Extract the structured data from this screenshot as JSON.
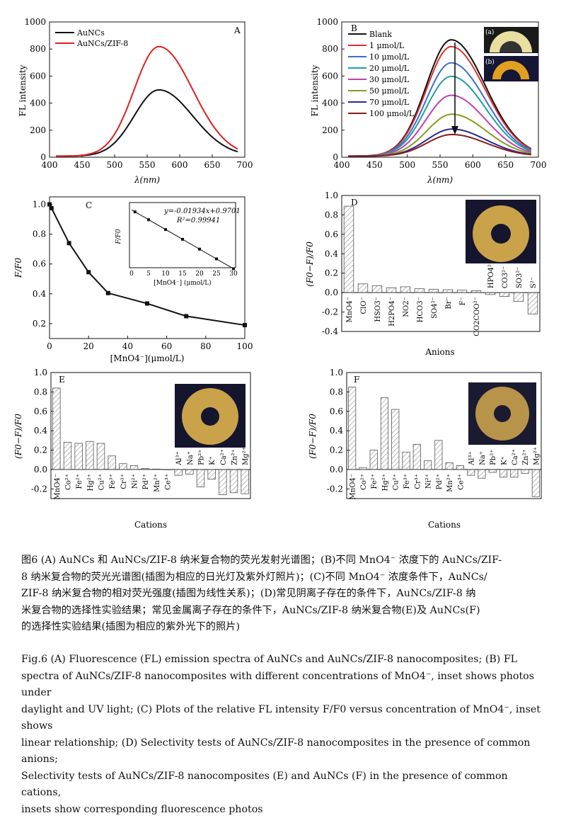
{
  "panels": {
    "A": {
      "letter": "A",
      "legend": [
        "AuNCs",
        "AuNCs/ZIF-8"
      ],
      "ylabel": "FL intensity",
      "xlabel": "λ(nm)",
      "xticks": [
        "400",
        "450",
        "500",
        "550",
        "600",
        "650",
        "700"
      ],
      "yticks": [
        "0",
        "200",
        "400",
        "600",
        "800",
        "1000"
      ]
    },
    "B": {
      "letter": "B",
      "legend": [
        "Blank",
        "1 μmol/L",
        "10 μmol/L",
        "20 μmol/L",
        "30 μmol/L",
        "50 μmol/L",
        "70 μmol/L",
        "100 μmol/L"
      ],
      "ylabel": "FL intensity",
      "xlabel": "λ(nm)",
      "xticks": [
        "400",
        "450",
        "500",
        "550",
        "600",
        "650",
        "700"
      ],
      "yticks": [
        "0",
        "200",
        "400",
        "600",
        "800",
        "1000"
      ],
      "inset_labels": [
        "(a)",
        "(b)"
      ]
    },
    "C": {
      "letter": "C",
      "ylabel": "F/F0",
      "xlabel": "[MnO4⁻](μmol/L)",
      "xticks": [
        "0",
        "20",
        "40",
        "60",
        "80",
        "100"
      ],
      "yticks": [
        "0.2",
        "0.4",
        "0.6",
        "0.8",
        "1.0"
      ],
      "inset": {
        "equation": "y=-0.01934x+0.9701",
        "r2": "R²=0.99941",
        "xlabel": "[MnO4⁻] (μmol/L)",
        "ylabel": "F/F0",
        "xticks": [
          "0",
          "5",
          "10",
          "15",
          "20",
          "25",
          "30"
        ]
      }
    },
    "D": {
      "letter": "D",
      "ylabel": "(F0−F)/F0",
      "xlabel": "Anions",
      "yticks": [
        "1.0",
        "0.8",
        "0.6",
        "0.4",
        "0.2",
        "0.0",
        "-0.2",
        "-0.4"
      ]
    },
    "E": {
      "letter": "E",
      "ylabel": "(F0−F)/F0",
      "xlabel": "Cations",
      "yticks": [
        "1.0",
        "0.8",
        "0.6",
        "0.4",
        "0.2",
        "0.0",
        "-0.2"
      ]
    },
    "F": {
      "letter": "F",
      "ylabel": "(F0−F)/F0",
      "xlabel": "Cations",
      "yticks": [
        "1.0",
        "0.8",
        "0.6",
        "0.4",
        "0.2",
        "0.0",
        "-0.2"
      ]
    }
  },
  "chart_data": [
    {
      "panel": "A",
      "type": "line",
      "xlim": [
        400,
        700
      ],
      "ylim": [
        0,
        1000
      ],
      "xlabel": "λ(nm)",
      "ylabel": "FL intensity",
      "series": [
        {
          "name": "AuNCs",
          "color": "#111111",
          "peak_x": 568,
          "peak_y": 490
        },
        {
          "name": "AuNCs/ZIF-8",
          "color": "#e02020",
          "peak_x": 568,
          "peak_y": 810
        }
      ]
    },
    {
      "panel": "B",
      "type": "line",
      "xlim": [
        400,
        700
      ],
      "ylim": [
        0,
        1000
      ],
      "xlabel": "λ(nm)",
      "ylabel": "FL intensity",
      "series": [
        {
          "name": "Blank",
          "color": "#111111",
          "peak_x": 567,
          "peak_y": 860
        },
        {
          "name": "1 μmol/L",
          "color": "#e03030",
          "peak_x": 567,
          "peak_y": 810
        },
        {
          "name": "10 μmol/L",
          "color": "#3a6fd0",
          "peak_x": 567,
          "peak_y": 690
        },
        {
          "name": "20 μmol/L",
          "color": "#20a0a0",
          "peak_x": 567,
          "peak_y": 590
        },
        {
          "name": "30 μmol/L",
          "color": "#c040b0",
          "peak_x": 567,
          "peak_y": 450
        },
        {
          "name": "50 μmol/L",
          "color": "#8a9a20",
          "peak_x": 568,
          "peak_y": 310
        },
        {
          "name": "70 μmol/L",
          "color": "#2a2a90",
          "peak_x": 568,
          "peak_y": 200
        },
        {
          "name": "100 μmol/L",
          "color": "#8a1a1a",
          "peak_x": 568,
          "peak_y": 160
        }
      ]
    },
    {
      "panel": "C",
      "type": "line",
      "xlim": [
        0,
        100
      ],
      "ylim": [
        0.1,
        1.05
      ],
      "xlabel": "[MnO4⁻](μmol/L)",
      "ylabel": "F/F0",
      "x": [
        0,
        1,
        10,
        20,
        30,
        50,
        70,
        100
      ],
      "y": [
        1.0,
        0.975,
        0.74,
        0.545,
        0.405,
        0.335,
        0.25,
        0.19
      ],
      "inset": {
        "type": "scatter",
        "xlim": [
          0,
          30
        ],
        "ylim": [
          0.4,
          1.0
        ],
        "x": [
          1,
          5,
          10,
          15,
          20,
          25,
          30
        ],
        "y": [
          0.95,
          0.873,
          0.776,
          0.68,
          0.583,
          0.487,
          0.39
        ]
      }
    },
    {
      "panel": "D",
      "type": "bar",
      "ylim": [
        -0.4,
        1.0
      ],
      "xlabel": "Anions",
      "ylabel": "(F0−F)/F0",
      "categories": [
        "MnO4⁻",
        "ClO⁻",
        "HSO3⁻",
        "H2PO4⁻",
        "NO2⁻",
        "HCO3⁻",
        "SO4²⁻",
        "Br⁻",
        "F⁻",
        "CO2COO²⁻",
        "HPO4²⁻",
        "CO3²⁻",
        "SO3²⁻",
        "S²⁻"
      ],
      "values": [
        0.89,
        0.09,
        0.07,
        0.05,
        0.06,
        0.04,
        0.035,
        0.03,
        0.025,
        0.02,
        -0.02,
        -0.04,
        -0.09,
        -0.22
      ]
    },
    {
      "panel": "E",
      "type": "bar",
      "ylim": [
        -0.3,
        1.0
      ],
      "xlabel": "Cations",
      "ylabel": "(F0−F)/F0",
      "categories": [
        "MnO4⁻",
        "Co²⁺",
        "Fe²⁺",
        "Hg²⁺",
        "Cu²⁺",
        "Fe³⁺",
        "Cr³⁺",
        "Ni²⁺",
        "Pd²⁺",
        "Mn²⁺",
        "Ce³⁺",
        "Al³⁺",
        "Na⁺",
        "Pb²⁺",
        "K⁺",
        "Ca²⁺",
        "Zn²⁺",
        "Mg²⁺"
      ],
      "values": [
        0.84,
        0.28,
        0.27,
        0.29,
        0.27,
        0.14,
        0.06,
        0.04,
        0.01,
        0.005,
        0.0,
        -0.06,
        -0.05,
        -0.18,
        -0.1,
        -0.26,
        -0.24,
        -0.25
      ]
    },
    {
      "panel": "F",
      "type": "bar",
      "ylim": [
        -0.3,
        1.0
      ],
      "xlabel": "Cations",
      "ylabel": "(F0−F)/F0",
      "categories": [
        "MnO4⁻",
        "Co²⁺",
        "Fe²⁺",
        "Hg²⁺",
        "Cu²⁺",
        "Fe³⁺",
        "Cr³⁺",
        "Ni²⁺",
        "Pd²⁺",
        "Mn²⁺",
        "Ce³⁺",
        "Al³⁺",
        "Na⁺",
        "Pb²⁺",
        "K⁺",
        "Ca²⁺",
        "Zn²⁺",
        "Mg²⁺"
      ],
      "values": [
        0.85,
        0.02,
        0.2,
        0.74,
        0.62,
        0.18,
        0.26,
        0.09,
        0.3,
        0.07,
        0.04,
        -0.06,
        -0.09,
        -0.03,
        -0.08,
        -0.08,
        -0.04,
        -0.28
      ]
    }
  ],
  "caption": {
    "cn": [
      "图6 (A) AuNCs 和 AuNCs/ZIF-8 纳米复合物的荧光发射光谱图；(B)不同 MnO4⁻ 浓度下的 AuNCs/ZIF-",
      "8 纳米复合物的荧光光谱图(插图为相应的日光灯及紫外灯照片)；(C)不同 MnO4⁻ 浓度条件下，AuNCs/",
      "ZIF-8 纳米复合物的相对荧光强度(插图为线性关系)；(D)常见阴离子存在的条件下，AuNCs/ZIF-8 纳",
      "米复合物的选择性实验结果；常见金属离子存在的条件下，AuNCs/ZIF-8 纳米复合物(E)及 AuNCs(F)",
      "的选择性实验结果(插图为相应的紫外光下的照片)"
    ],
    "en": [
      "Fig.6 (A) Fluorescence (FL) emission spectra of AuNCs and AuNCs/ZIF-8 nanocomposites; (B) FL",
      "spectra of AuNCs/ZIF-8 nanocomposites with different concentrations of MnO4⁻, inset shows photos under",
      "daylight and UV light; (C) Plots of the relative FL intensity F/F0 versus concentration of MnO4⁻, inset shows",
      "linear relationship; (D) Selectivity tests of AuNCs/ZIF-8 nanocomposites in the presence of common anions;",
      "Selectivity tests of AuNCs/ZIF-8 nanocomposites (E) and AuNCs (F) in the presence of common cations,",
      "insets show corresponding fluorescence photos"
    ]
  }
}
